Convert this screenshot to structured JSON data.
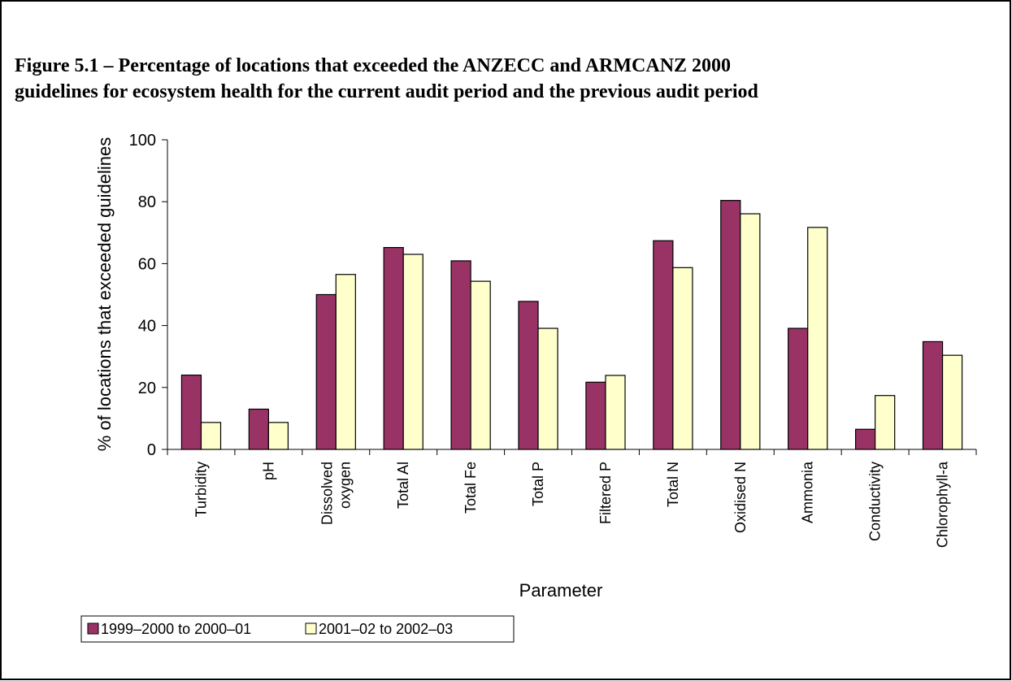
{
  "chart_data": {
    "type": "bar",
    "title": "Figure 5.1 – Percentage of locations that exceeded the ANZECC and ARMCANZ 2000\nguidelines for ecosystem health for the current audit period and the previous audit period",
    "x_label": "Parameter",
    "y_label": "% of locations that exceeded guidelines",
    "categories": [
      "Turbidity",
      "pH",
      "Dissolved\noxygen",
      "Total Al",
      "Total Fe",
      "Total P",
      "Filtered P",
      "Total N",
      "Oxidised N",
      "Ammonia",
      "Conductivity",
      "Chlorophyll-a"
    ],
    "series": [
      {
        "name": "1999–2000 to 2000–01",
        "color": "#993366",
        "values": [
          24,
          13,
          50,
          65.2,
          60.9,
          47.8,
          21.7,
          67.4,
          80.4,
          39.1,
          6.5,
          34.8
        ]
      },
      {
        "name": "2001–02 to 2002–03",
        "color": "#ffffcc",
        "values": [
          8.7,
          8.7,
          56.5,
          63,
          54.3,
          39.1,
          23.9,
          58.7,
          76.1,
          71.7,
          17.4,
          30.4
        ]
      }
    ],
    "ylim": [
      0,
      100
    ],
    "yticks": [
      0,
      20,
      40,
      60,
      80,
      100
    ],
    "grid": false,
    "legend": "bottom"
  }
}
